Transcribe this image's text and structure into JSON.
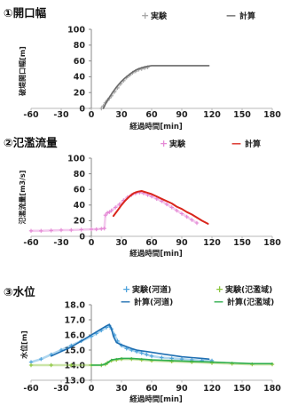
{
  "chart_data": [
    {
      "type": "line",
      "title": "①開口幅",
      "xlabel": "経過時間[min]",
      "ylabel": "破堤開口幅[m]",
      "xlim": [
        -60,
        180
      ],
      "ylim": [
        0,
        100
      ],
      "xticks": [
        -60,
        -30,
        0,
        30,
        60,
        90,
        120,
        150,
        180
      ],
      "xtick_labels": [
        "-60",
        "-30",
        "0",
        "30",
        "60",
        "90",
        "120",
        "150",
        "180"
      ],
      "yticks": [
        0,
        20,
        40,
        60,
        80,
        100
      ],
      "ytick_labels": [
        "0",
        "20",
        "40",
        "60",
        "80",
        "100"
      ],
      "grid": false,
      "legend": "top-right",
      "series": [
        {
          "name": "実験",
          "marker": "+",
          "color": "#a6a6a6",
          "x": [
            10,
            12,
            14,
            16,
            18,
            20,
            23,
            26,
            29,
            32,
            35,
            38,
            41,
            44,
            47,
            50,
            53,
            56
          ],
          "y": [
            0,
            3,
            7,
            10,
            13,
            16,
            21,
            26,
            31,
            35,
            39,
            42,
            45,
            47,
            49,
            50,
            51,
            52
          ]
        },
        {
          "name": "計算",
          "marker": "—",
          "color": "#6a6a6a",
          "x": [
            12,
            15,
            18,
            21,
            25,
            29,
            33,
            37,
            41,
            45,
            49,
            53,
            57,
            60,
            70,
            80,
            90,
            100,
            110,
            117
          ],
          "y": [
            0,
            8,
            14,
            20,
            27,
            33,
            38,
            42,
            46,
            49,
            51,
            52.5,
            53.5,
            54,
            54,
            54,
            54,
            54,
            54,
            54
          ]
        }
      ]
    },
    {
      "type": "line",
      "title": "②氾濫流量",
      "xlabel": "経過時間[min]",
      "ylabel": "氾濫流量[m3/s]",
      "xlim": [
        -60,
        180
      ],
      "ylim": [
        0,
        100
      ],
      "xticks": [
        -60,
        -30,
        0,
        30,
        60,
        90,
        120,
        150,
        180
      ],
      "xtick_labels": [
        "-60",
        "-30",
        "0",
        "30",
        "60",
        "90",
        "120",
        "150",
        "180"
      ],
      "yticks": [
        0,
        20,
        40,
        60,
        80,
        100
      ],
      "ytick_labels": [
        "0",
        "20",
        "40",
        "60",
        "80",
        "100"
      ],
      "grid": false,
      "legend": "top-right",
      "series": [
        {
          "name": "実験",
          "marker": "+",
          "color": "#e58ad6",
          "x": [
            -60,
            -50,
            -40,
            -30,
            -20,
            -10,
            0,
            5,
            10,
            13,
            14,
            16,
            18,
            20,
            24,
            28,
            32,
            36,
            40,
            44,
            48,
            52,
            56,
            60,
            65,
            70,
            75,
            80,
            85,
            90,
            95,
            100,
            105
          ],
          "y": [
            7,
            7,
            7.5,
            8,
            8,
            8.5,
            9,
            9,
            9.5,
            10,
            27,
            30,
            31,
            33,
            37,
            41,
            46,
            50,
            53,
            55,
            56,
            55,
            53,
            51,
            48,
            45,
            41,
            37,
            33,
            29,
            25,
            21,
            17
          ]
        },
        {
          "name": "計算",
          "marker": "—",
          "color": "#d9261c",
          "x": [
            22,
            26,
            30,
            34,
            38,
            42,
            46,
            50,
            55,
            60,
            65,
            70,
            75,
            80,
            85,
            90,
            95,
            100,
            105,
            110,
            116
          ],
          "y": [
            26,
            33,
            40,
            46,
            51,
            55,
            57,
            58,
            56,
            54,
            51,
            48,
            45,
            42,
            38,
            35,
            31,
            28,
            24,
            20,
            16
          ]
        }
      ]
    },
    {
      "type": "line",
      "title": "③水位",
      "xlabel": "経過時間[min]",
      "ylabel": "水位[m]",
      "xlim": [
        -60,
        180
      ],
      "ylim": [
        13,
        18
      ],
      "xticks": [
        -60,
        -30,
        0,
        30,
        60,
        90,
        120,
        150,
        180
      ],
      "xtick_labels": [
        "-60",
        "-30",
        "0",
        "30",
        "60",
        "90",
        "120",
        "150",
        "180"
      ],
      "yticks": [
        13,
        14,
        15,
        16,
        17,
        18
      ],
      "ytick_labels": [
        "13.0",
        "14.0",
        "15.0",
        "16.0",
        "17.0",
        "18.0"
      ],
      "grid": false,
      "legend": "top-right",
      "series": [
        {
          "name": "実験(河道)",
          "marker": "+",
          "color": "#4ea3dc",
          "x": [
            -60,
            -50,
            -40,
            -30,
            -20,
            -10,
            0,
            5,
            10,
            15,
            18,
            20,
            23,
            26,
            30,
            35,
            40,
            45,
            50,
            55,
            60,
            70,
            80,
            90,
            100,
            110,
            120
          ],
          "y": [
            14.2,
            14.4,
            14.7,
            15.0,
            15.3,
            15.6,
            15.9,
            16.1,
            16.3,
            16.5,
            16.6,
            16.4,
            16.0,
            15.6,
            15.3,
            15.1,
            15.0,
            14.9,
            14.8,
            14.7,
            14.6,
            14.5,
            14.45,
            14.4,
            14.35,
            14.3,
            14.3
          ]
        },
        {
          "name": "計算(河道)",
          "marker": "—",
          "color": "#1f6fb2",
          "x": [
            -40,
            -30,
            -20,
            -10,
            0,
            5,
            10,
            15,
            18,
            20,
            22,
            25,
            28,
            32,
            36,
            40,
            45,
            50,
            55,
            60,
            70,
            80,
            90,
            100,
            110,
            117
          ],
          "y": [
            14.6,
            14.9,
            15.2,
            15.6,
            16.0,
            16.2,
            16.4,
            16.6,
            16.7,
            16.4,
            15.9,
            15.5,
            15.4,
            15.3,
            15.2,
            15.1,
            15.0,
            14.95,
            14.9,
            14.85,
            14.75,
            14.65,
            14.55,
            14.5,
            14.45,
            14.4
          ]
        },
        {
          "name": "実験(氾濫域)",
          "marker": "+",
          "color": "#8cc63f",
          "x": [
            -60,
            -40,
            -20,
            0,
            10,
            14,
            16,
            20,
            25,
            30,
            40,
            50,
            60,
            80,
            100,
            120,
            140,
            160,
            180
          ],
          "y": [
            14.0,
            14.0,
            14.0,
            14.0,
            14.0,
            14.05,
            14.15,
            14.3,
            14.35,
            14.4,
            14.4,
            14.35,
            14.3,
            14.25,
            14.2,
            14.15,
            14.1,
            14.05,
            14.05
          ]
        },
        {
          "name": "計算(氾濫域)",
          "marker": "—",
          "color": "#2fae4e",
          "x": [
            0,
            10,
            15,
            18,
            20,
            25,
            30,
            40,
            50,
            60,
            80,
            100,
            120,
            140,
            160,
            180
          ],
          "y": [
            14.0,
            14.0,
            14.1,
            14.25,
            14.35,
            14.4,
            14.45,
            14.45,
            14.4,
            14.35,
            14.3,
            14.25,
            14.2,
            14.15,
            14.1,
            14.1
          ]
        }
      ]
    }
  ]
}
